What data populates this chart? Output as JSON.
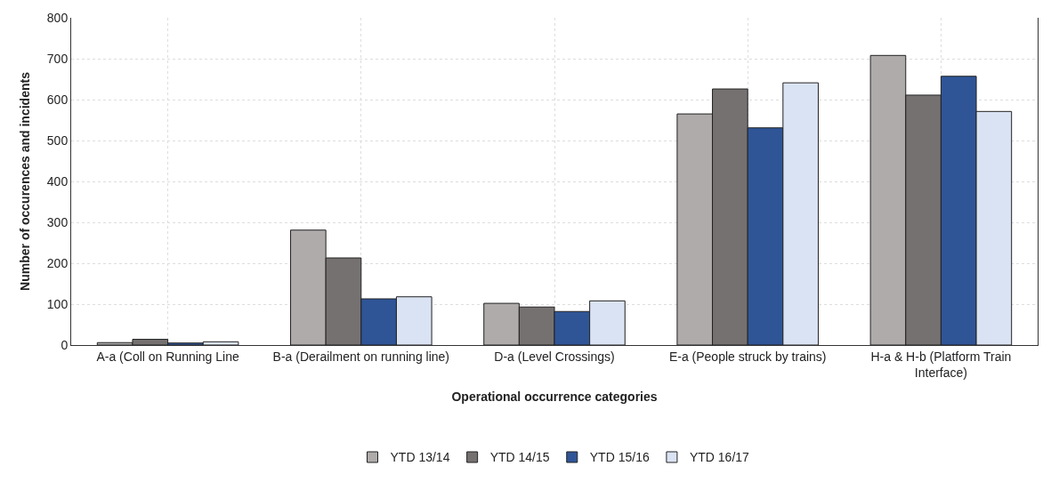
{
  "chart_data": {
    "type": "bar",
    "xlabel": "Operational occurrence categories",
    "ylabel": "Number of occurences and incidents",
    "categories": [
      "A-a (Coll on Running Line",
      "B-a (Derailment on running line)",
      "D-a (Level Crossings)",
      "E-a (People struck by trains)",
      "H-a & H-b (Platform Train Interface)"
    ],
    "series": [
      {
        "name": "YTD 13/14",
        "color": "#afabab",
        "values": [
          6,
          281,
          102,
          565,
          708
        ]
      },
      {
        "name": "YTD 14/15",
        "color": "#767171",
        "values": [
          14,
          213,
          93,
          626,
          611
        ]
      },
      {
        "name": "YTD 15/16",
        "color": "#2f5597",
        "values": [
          5,
          113,
          82,
          531,
          657
        ]
      },
      {
        "name": "YTD 16/17",
        "color": "#dae3f3",
        "values": [
          8,
          118,
          108,
          641,
          571
        ]
      }
    ],
    "ylim": [
      0,
      800
    ],
    "yticks": [
      0,
      100,
      200,
      300,
      400,
      500,
      600,
      700,
      800
    ],
    "grid": true,
    "legend": "bottom"
  }
}
